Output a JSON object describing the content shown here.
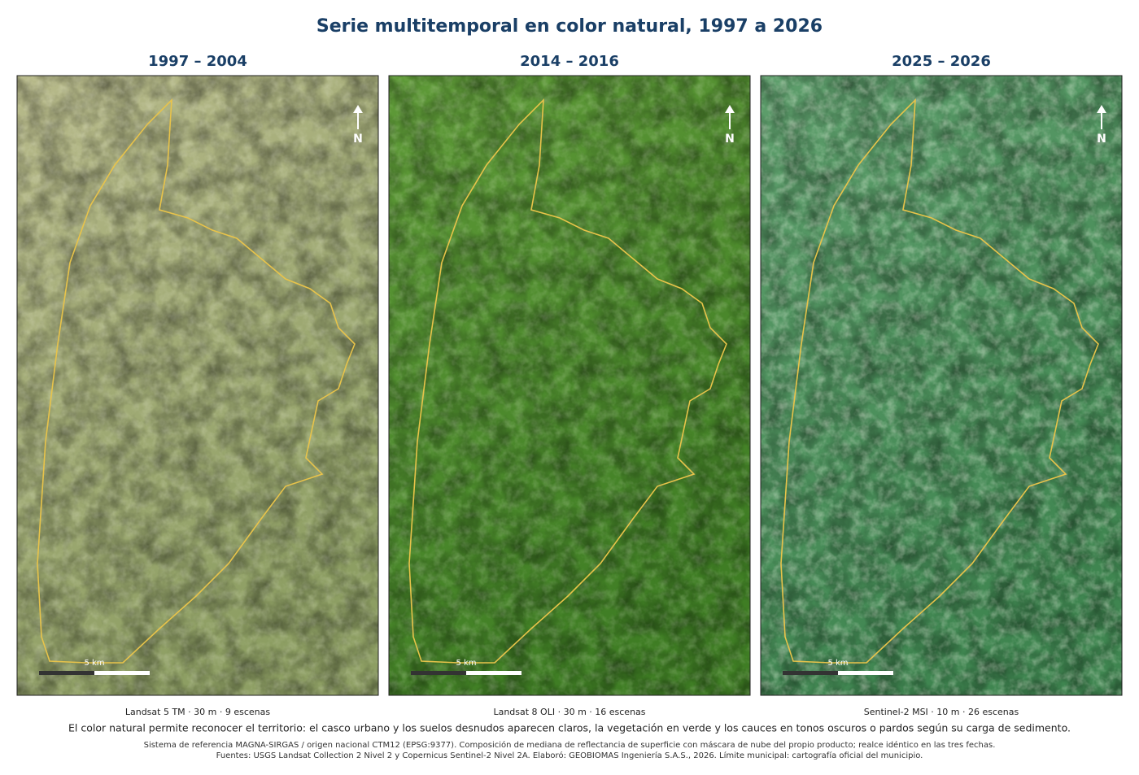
{
  "title": "Serie multitemporal en color natural, 1997 a 2026",
  "panels": [
    {
      "period": "1997 – 2004",
      "sensor": "Landsat 5 TM · 30 m · 9 escenas",
      "north": "N",
      "scale_label": "5 km"
    },
    {
      "period": "2014 – 2016",
      "sensor": "Landsat 8 OLI · 30 m · 16 escenas",
      "north": "N",
      "scale_label": "5 km"
    },
    {
      "period": "2025 – 2026",
      "sensor": "Sentinel-2 MSI · 10 m · 26 escenas",
      "north": "N",
      "scale_label": "5 km"
    }
  ],
  "description": "El color natural permite reconocer el territorio: el casco urbano y los suelos desnudos aparecen claros, la vegetación en verde y los cauces en tonos oscuros o pardos según su carga de sedimento.",
  "notes": [
    "Sistema de referencia MAGNA-SIRGAS / origen nacional CTM12 (EPSG:9377). Composición de mediana de reflectancia de superficie con máscara de nube del propio producto; realce idéntico en las tres fechas.",
    "Fuentes: USGS Landsat Collection 2 Nivel 2 y Copernicus Sentinel-2 Nivel 2A. Elaboró: GEOBIOMAS Ingeniería S.A.S., 2026. Límite municipal: cartografía oficial del municipio."
  ]
}
